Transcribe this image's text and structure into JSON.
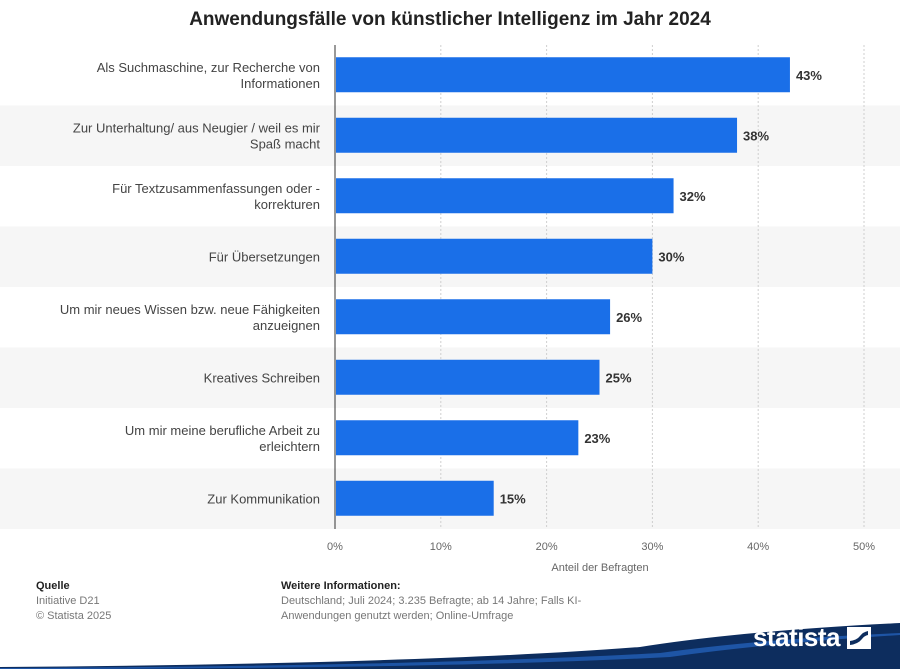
{
  "chart_data": {
    "type": "bar",
    "orientation": "horizontal",
    "title": "Anwendungsfälle von künstlicher Intelligenz im Jahr 2024",
    "categories": [
      [
        "Als Suchmaschine, zur Recherche von",
        "Informationen"
      ],
      [
        "Zur Unterhaltung/ aus Neugier / weil es mir",
        "Spaß macht"
      ],
      [
        "Für Textzusammenfassungen oder -",
        "korrekturen"
      ],
      [
        "Für Übersetzungen"
      ],
      [
        "Um mir neues Wissen bzw. neue Fähigkeiten",
        "anzueignen"
      ],
      [
        "Kreatives Schreiben"
      ],
      [
        "Um mir meine berufliche Arbeit zu",
        "erleichtern"
      ],
      [
        "Zur Kommunikation"
      ]
    ],
    "values": [
      43,
      38,
      32,
      30,
      26,
      25,
      23,
      15
    ],
    "value_labels": [
      "43%",
      "38%",
      "32%",
      "30%",
      "26%",
      "25%",
      "23%",
      "15%"
    ],
    "xlim": [
      0,
      50
    ],
    "ticks": [
      0,
      10,
      20,
      30,
      40,
      50
    ],
    "tick_labels": [
      "0%",
      "10%",
      "20%",
      "30%",
      "40%",
      "50%"
    ],
    "xlabel": "Anteil der Befragten",
    "ylabel": "",
    "grid": true,
    "bar_color": "#1a6fe8"
  },
  "footer": {
    "source_heading": "Quelle",
    "source_lines": [
      "Initiative D21",
      "© Statista 2025"
    ],
    "info_heading": "Weitere Informationen:",
    "info_lines": [
      "Deutschland; Juli 2024; 3.235 Befragte; ab 14 Jahre; Falls KI-",
      "Anwendungen genutzt werden; Online-Umfrage"
    ]
  },
  "brand": {
    "name": "statista",
    "color": "#0d2d5e"
  }
}
